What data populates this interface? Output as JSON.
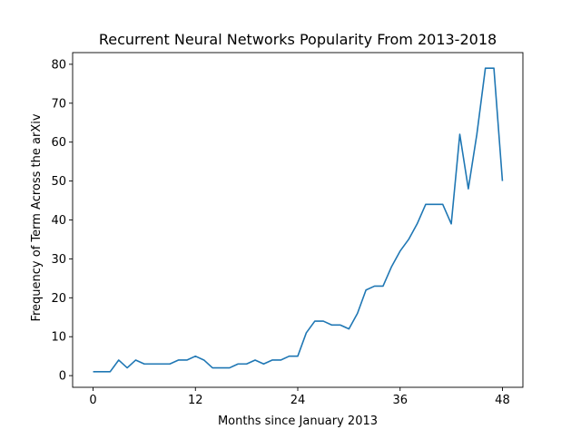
{
  "chart_data": {
    "type": "line",
    "title": "Recurrent Neural Networks Popularity From 2013-2018",
    "xlabel": "Months since January 2013",
    "ylabel": "Frequency of Term Across the arXiv",
    "xlim": [
      -2.4,
      50.4
    ],
    "ylim": [
      -3,
      83
    ],
    "xticks": [
      0,
      12,
      24,
      36,
      48
    ],
    "yticks": [
      0,
      10,
      20,
      30,
      40,
      50,
      60,
      70,
      80
    ],
    "grid": false,
    "legend": "none",
    "series": [
      {
        "color": "#1f77b4",
        "x": [
          0,
          1,
          2,
          3,
          4,
          5,
          6,
          7,
          8,
          9,
          10,
          11,
          12,
          13,
          14,
          15,
          16,
          17,
          18,
          19,
          20,
          21,
          22,
          23,
          24,
          25,
          26,
          27,
          28,
          29,
          30,
          31,
          32,
          33,
          34,
          35,
          36,
          37,
          38,
          39,
          40,
          41,
          42,
          43,
          44,
          45,
          46,
          47,
          48
        ],
        "y": [
          1,
          1,
          1,
          4,
          2,
          4,
          3,
          3,
          3,
          3,
          4,
          4,
          5,
          4,
          2,
          2,
          2,
          3,
          3,
          4,
          3,
          4,
          4,
          5,
          5,
          11,
          14,
          14,
          13,
          13,
          12,
          16,
          22,
          23,
          23,
          28,
          32,
          35,
          39,
          44,
          44,
          44,
          39,
          62,
          48,
          62,
          79,
          79,
          50
        ]
      }
    ]
  }
}
